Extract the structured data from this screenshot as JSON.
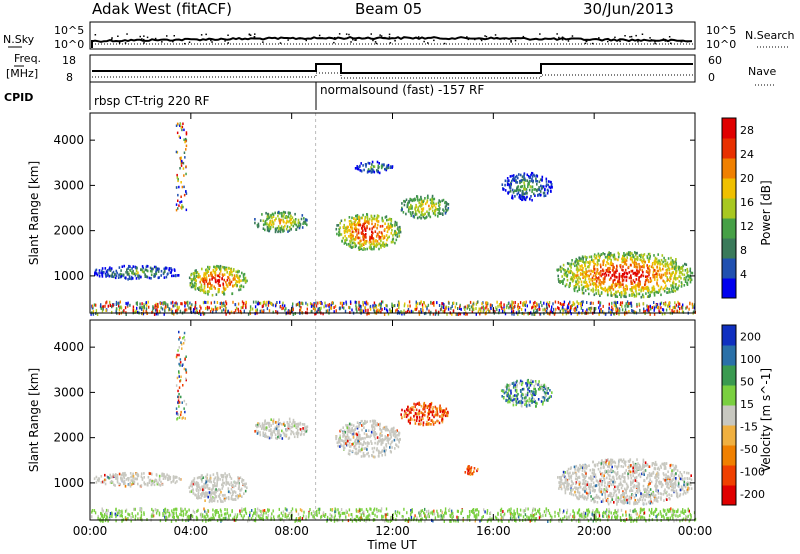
{
  "header": {
    "station": "Adak West (fitACF)",
    "beam": "Beam 05",
    "date": "30/Jun/2013"
  },
  "noise_panel": {
    "left_label": "N.Sky",
    "right_label": "N.Search",
    "left_ticks": [
      "10^5",
      "10^0"
    ],
    "right_ticks": [
      "10^5",
      "10^0"
    ]
  },
  "freq_panel": {
    "left_label_1": "Freq.",
    "left_label_2": "[MHz]",
    "right_label": "Nave",
    "left_ticks": [
      "18",
      "8"
    ],
    "right_ticks": [
      "60",
      "0"
    ]
  },
  "cpid_panel": {
    "label": "CPID",
    "programs": [
      "rbsp CT-trig 220 RF",
      "normalsound (fast) -157 RF"
    ]
  },
  "colors": {
    "power_scale": [
      "#0000ee",
      "#2050b0",
      "#3a7a5a",
      "#46a046",
      "#a8c820",
      "#f0c000",
      "#f08000",
      "#e83000",
      "#e00000"
    ],
    "velocity_scale": [
      "#e00000",
      "#f04000",
      "#f08000",
      "#f0b040",
      "#c8c8c0",
      "#7ad040",
      "#3a9a50",
      "#2a70a8",
      "#1030c0"
    ]
  },
  "chart_data": [
    {
      "type": "heatmap",
      "title": "",
      "xlabel": "",
      "ylabel": "Slant Range [km]",
      "x_ticks": [
        "00:00",
        "04:00",
        "08:00",
        "12:00",
        "16:00",
        "20:00",
        "00:00"
      ],
      "y_ticks": [
        1000,
        2000,
        3000,
        4000
      ],
      "ylim": [
        180,
        4600
      ],
      "xlim_hours": [
        0,
        24
      ],
      "colorbar": {
        "label": "Power [dB]",
        "ticks": [
          4,
          8,
          12,
          16,
          20,
          24,
          28
        ],
        "range": [
          0,
          30
        ]
      },
      "echo_regions_hours_km": [
        {
          "t0": 0.1,
          "t1": 3.6,
          "r0": 950,
          "r1": 1250,
          "level": "low"
        },
        {
          "t0": 3.9,
          "t1": 6.2,
          "r0": 600,
          "r1": 1250,
          "level": "high"
        },
        {
          "t0": 6.5,
          "t1": 8.6,
          "r0": 2000,
          "r1": 2450,
          "level": "mid"
        },
        {
          "t0": 9.7,
          "t1": 12.3,
          "r0": 1600,
          "r1": 2400,
          "level": "high"
        },
        {
          "t0": 12.3,
          "t1": 14.2,
          "r0": 2300,
          "r1": 2800,
          "level": "mid"
        },
        {
          "t0": 10.5,
          "t1": 12.0,
          "r0": 3300,
          "r1": 3550,
          "level": "low"
        },
        {
          "t0": 16.3,
          "t1": 18.3,
          "r0": 2700,
          "r1": 3300,
          "level": "low"
        },
        {
          "t0": 18.5,
          "t1": 23.9,
          "r0": 550,
          "r1": 1550,
          "level": "high"
        }
      ]
    },
    {
      "type": "heatmap",
      "title": "",
      "xlabel": "Time UT",
      "ylabel": "Slant Range [km]",
      "x_ticks": [
        "00:00",
        "04:00",
        "08:00",
        "12:00",
        "16:00",
        "20:00",
        "00:00"
      ],
      "y_ticks": [
        1000,
        2000,
        3000,
        4000
      ],
      "ylim": [
        180,
        4600
      ],
      "xlim_hours": [
        0,
        24
      ],
      "colorbar": {
        "label": "Velocity [m s^-1]",
        "ticks": [
          -200,
          -100,
          -50,
          -15,
          15,
          50,
          100,
          200
        ],
        "range": [
          -250,
          250
        ]
      },
      "echo_regions_hours_km": [
        {
          "t0": 0.1,
          "t1": 3.6,
          "r0": 950,
          "r1": 1250,
          "level": "gs"
        },
        {
          "t0": 3.9,
          "t1": 6.2,
          "r0": 600,
          "r1": 1250,
          "level": "gs"
        },
        {
          "t0": 6.5,
          "t1": 8.6,
          "r0": 2000,
          "r1": 2450,
          "level": "gs"
        },
        {
          "t0": 9.7,
          "t1": 12.3,
          "r0": 1600,
          "r1": 2400,
          "level": "gs"
        },
        {
          "t0": 12.3,
          "t1": 14.2,
          "r0": 2300,
          "r1": 2800,
          "level": "neg"
        },
        {
          "t0": 14.8,
          "t1": 15.4,
          "r0": 1200,
          "r1": 1400,
          "level": "neg"
        },
        {
          "t0": 16.3,
          "t1": 18.3,
          "r0": 2700,
          "r1": 3300,
          "level": "pos"
        },
        {
          "t0": 18.5,
          "t1": 23.9,
          "r0": 550,
          "r1": 1550,
          "level": "gs"
        }
      ]
    }
  ]
}
